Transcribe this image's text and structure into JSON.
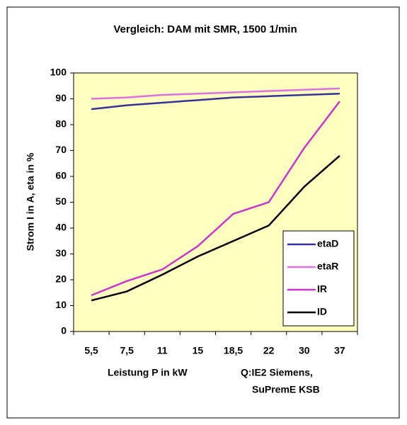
{
  "chart_data": {
    "type": "line",
    "title": "Vergleich: DAM mit SMR, 1500 1/min",
    "x_label": "Leistung P in kW",
    "source": [
      "Q:IE2 Siemens,",
      "SuPremE KSB"
    ],
    "y_label": "Strom I in A, eta in %",
    "categories": [
      "5,5",
      "7,5",
      "11",
      "15",
      "18,5",
      "22",
      "30",
      "37"
    ],
    "series": [
      {
        "name": "etaD",
        "color": "#333399",
        "values": [
          86,
          87.5,
          88.5,
          89.5,
          90.5,
          91,
          91.5,
          92
        ]
      },
      {
        "name": "etaR",
        "color": "#e070e0",
        "values": [
          90,
          90.5,
          91.5,
          92,
          92.5,
          93,
          93.5,
          94
        ]
      },
      {
        "name": "IR",
        "color": "#cc33cc",
        "values": [
          14,
          19.5,
          24,
          33,
          45.5,
          50,
          71,
          89
        ]
      },
      {
        "name": "ID",
        "color": "#000000",
        "values": [
          12,
          15.5,
          22,
          29,
          35,
          41,
          56,
          68
        ]
      }
    ],
    "ylim": [
      0,
      100
    ],
    "yticks": [
      0,
      10,
      20,
      30,
      40,
      50,
      60,
      70,
      80,
      90,
      100
    ],
    "legend": "lower right",
    "plot_background": "#ffffc0"
  }
}
